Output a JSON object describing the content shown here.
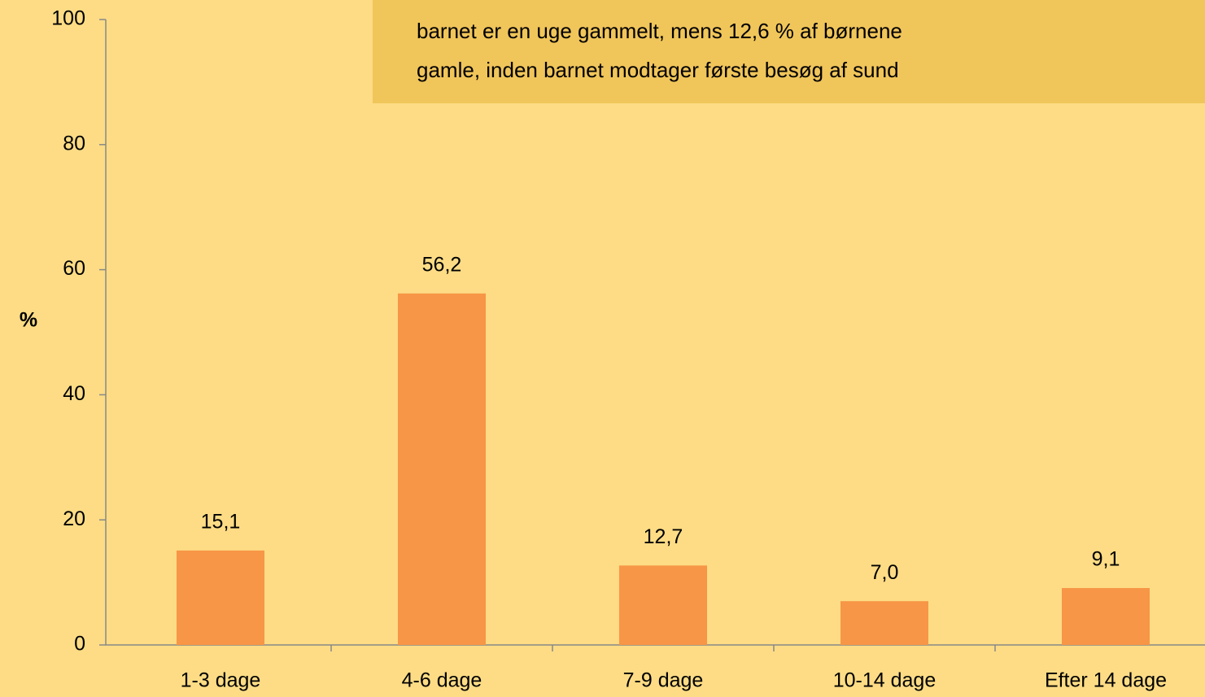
{
  "chart_data": {
    "type": "bar",
    "y_label": "%",
    "annotations": [
      "barnet er en uge gammelt, mens 12,6 % af børnene",
      "gamle, inden barnet modtager første besøg af sund"
    ],
    "categories": [
      "1-3 dage",
      "4-6 dage",
      "7-9 dage",
      "10-14 dage",
      "Efter 14 dage"
    ],
    "values": [
      15.1,
      56.2,
      12.7,
      7.0,
      9.1
    ],
    "value_labels": [
      "15,1",
      "56,2",
      "12,7",
      "7,0",
      "9,1"
    ],
    "color": "#f79646",
    "ylim": [
      0,
      100
    ],
    "yticks": [
      0,
      20,
      40,
      60,
      80,
      100
    ],
    "grid": false
  }
}
